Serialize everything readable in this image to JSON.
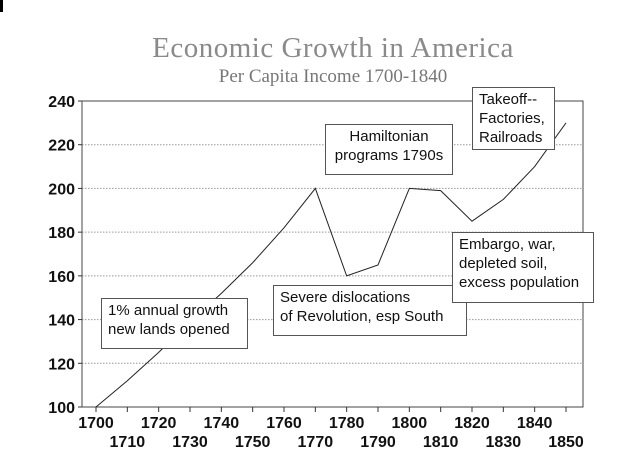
{
  "chart_data": {
    "type": "line",
    "title": "Economic Growth in America",
    "subtitle": "Per Capita Income 1700-1840",
    "xlabel": "",
    "ylabel": "",
    "x": [
      1700,
      1710,
      1720,
      1730,
      1740,
      1750,
      1760,
      1770,
      1780,
      1790,
      1800,
      1810,
      1820,
      1830,
      1840,
      1850
    ],
    "values": [
      100,
      112,
      125,
      139,
      152,
      166,
      182,
      200,
      160,
      165,
      200,
      199,
      185,
      195,
      210,
      230
    ],
    "xlim": [
      1700,
      1850
    ],
    "ylim": [
      100,
      240
    ],
    "yticks": [
      "100",
      "120",
      "140",
      "160",
      "180",
      "200",
      "220",
      "240"
    ],
    "xticks_top": [
      "1700",
      "1720",
      "1740",
      "1760",
      "1780",
      "1800",
      "1820",
      "1840"
    ],
    "xticks_bottom": [
      "1710",
      "1730",
      "1750",
      "1770",
      "1790",
      "1810",
      "1830",
      "1850"
    ],
    "grid": "horizontal-dotted",
    "line_color": "#222222",
    "annotations": [
      {
        "id": "growth",
        "lines": [
          "1% annual growth",
          "new lands opened"
        ]
      },
      {
        "id": "revolution",
        "lines": [
          "Severe dislocations",
          "of Revolution, esp South"
        ]
      },
      {
        "id": "hamilton",
        "lines": [
          "Hamiltonian",
          "programs 1790s"
        ]
      },
      {
        "id": "embargo",
        "lines": [
          "Embargo, war,",
          "depleted soil,",
          "excess population"
        ]
      },
      {
        "id": "takeoff",
        "lines": [
          "Takeoff--",
          "Factories,",
          "Railroads"
        ]
      }
    ]
  }
}
